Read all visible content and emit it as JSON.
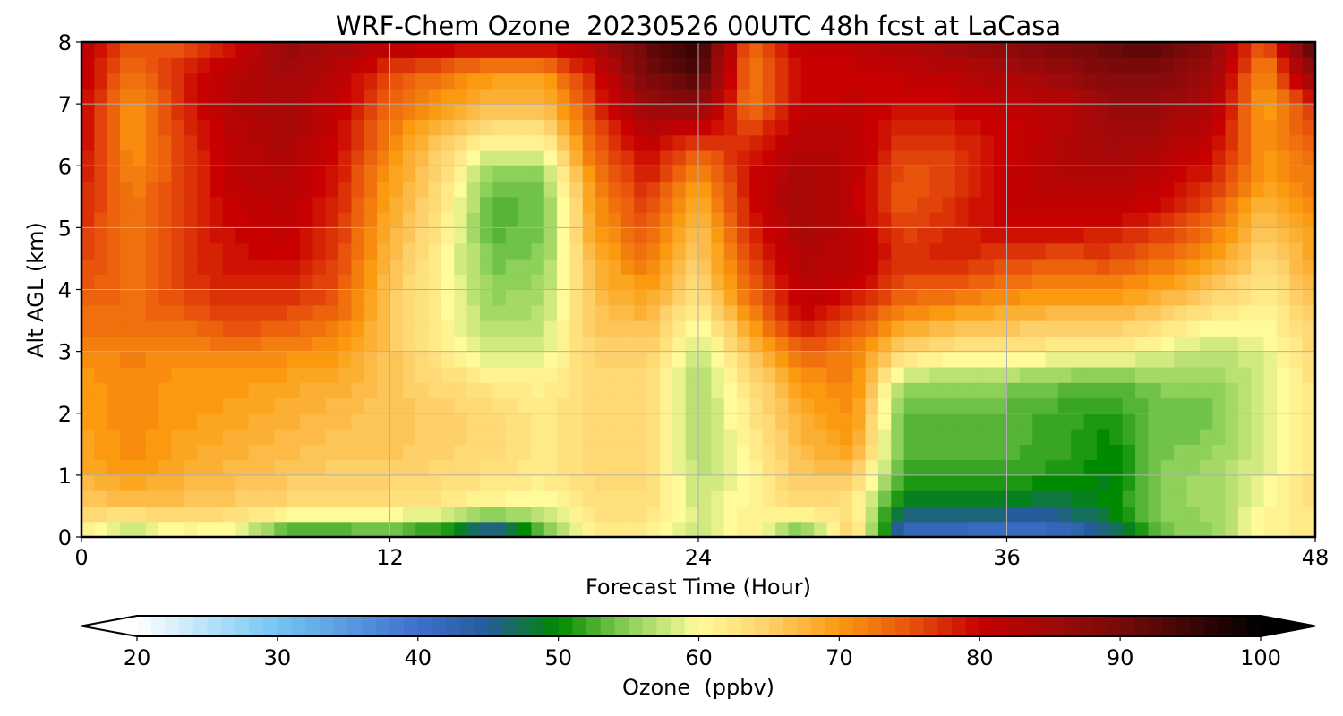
{
  "chart_data": {
    "type": "heatmap",
    "title": "WRF-Chem Ozone  20230526 00UTC 48h fcst at LaCasa",
    "xlabel": "Forecast Time (Hour)",
    "ylabel": "Alt AGL (km)",
    "xlim": [
      0,
      48
    ],
    "ylim": [
      0,
      8
    ],
    "xticks": [
      0,
      12,
      24,
      36,
      48
    ],
    "yticks": [
      0,
      1,
      2,
      3,
      4,
      5,
      6,
      7,
      8
    ],
    "grid": true,
    "x": [
      0,
      2,
      4,
      6,
      8,
      10,
      12,
      14,
      16,
      18,
      20,
      22,
      24,
      26,
      28,
      30,
      32,
      34,
      36,
      38,
      40,
      42,
      44,
      46,
      48
    ],
    "y": [
      0,
      0.5,
      1,
      1.5,
      2,
      2.5,
      3,
      3.5,
      4,
      4.5,
      5,
      5.5,
      6,
      6.5,
      7,
      7.5,
      8
    ],
    "z": [
      [
        60,
        55,
        59,
        58,
        50,
        50,
        51,
        48,
        40,
        52,
        62,
        61,
        58,
        62,
        51,
        66,
        40,
        40,
        38,
        40,
        45,
        54,
        55,
        61,
        62
      ],
      [
        65,
        66,
        66,
        65,
        64,
        63,
        63,
        62,
        60,
        59,
        63,
        63,
        58,
        61,
        64,
        62,
        48,
        48,
        48,
        47,
        50,
        55,
        56,
        60,
        63
      ],
      [
        68,
        70,
        68,
        67,
        66,
        65,
        65,
        64,
        63,
        62,
        64,
        64,
        57,
        60,
        66,
        66,
        52,
        52,
        52,
        51,
        49,
        55,
        56,
        59,
        63
      ],
      [
        69,
        71,
        69,
        68,
        67,
        66,
        66,
        65,
        64,
        62,
        64,
        64,
        56,
        61,
        67,
        70,
        53,
        53,
        53,
        52,
        50,
        54,
        55,
        58,
        63
      ],
      [
        70,
        71,
        70,
        69,
        68,
        67,
        66,
        65,
        64,
        62,
        64,
        64,
        56,
        62,
        68,
        71,
        53,
        53,
        53,
        52,
        51,
        54,
        54,
        58,
        63
      ],
      [
        70,
        71,
        70,
        70,
        69,
        68,
        66,
        64,
        62,
        61,
        64,
        64,
        56,
        63,
        70,
        72,
        56,
        55,
        55,
        54,
        53,
        55,
        55,
        58,
        63
      ],
      [
        71,
        72,
        71,
        72,
        71,
        70,
        66,
        62,
        58,
        59,
        65,
        65,
        57,
        66,
        74,
        72,
        64,
        62,
        62,
        61,
        61,
        59,
        57,
        59,
        64
      ],
      [
        73,
        73,
        74,
        76,
        75,
        73,
        66,
        61,
        56,
        57,
        66,
        67,
        60,
        70,
        80,
        76,
        70,
        68,
        67,
        66,
        66,
        64,
        61,
        60,
        65
      ],
      [
        75,
        73,
        76,
        78,
        78,
        75,
        66,
        61,
        55,
        56,
        67,
        70,
        63,
        74,
        82,
        80,
        75,
        74,
        72,
        71,
        71,
        69,
        66,
        62,
        67
      ],
      [
        76,
        73,
        77,
        79,
        80,
        76,
        67,
        61,
        54,
        55,
        68,
        73,
        65,
        76,
        83,
        82,
        77,
        78,
        76,
        75,
        76,
        73,
        70,
        64,
        69
      ],
      [
        77,
        72,
        77,
        80,
        81,
        77,
        68,
        62,
        53,
        54,
        70,
        75,
        66,
        78,
        84,
        82,
        76,
        78,
        80,
        80,
        79,
        77,
        73,
        66,
        70
      ],
      [
        78,
        72,
        77,
        81,
        82,
        78,
        69,
        63,
        53,
        54,
        71,
        77,
        68,
        79,
        85,
        81,
        74,
        77,
        81,
        82,
        82,
        80,
        76,
        68,
        72
      ],
      [
        79,
        71,
        76,
        82,
        83,
        79,
        70,
        64,
        56,
        56,
        73,
        79,
        72,
        79,
        84,
        82,
        75,
        76,
        80,
        83,
        84,
        82,
        79,
        70,
        73
      ],
      [
        80,
        70,
        77,
        82,
        84,
        80,
        72,
        66,
        62,
        62,
        75,
        82,
        78,
        77,
        82,
        82,
        77,
        78,
        80,
        82,
        85,
        84,
        81,
        70,
        75
      ],
      [
        80,
        70,
        78,
        83,
        84,
        81,
        74,
        70,
        67,
        67,
        77,
        86,
        88,
        72,
        80,
        81,
        79,
        80,
        81,
        82,
        86,
        86,
        83,
        69,
        78
      ],
      [
        81,
        73,
        78,
        82,
        85,
        82,
        76,
        73,
        70,
        70,
        79,
        90,
        94,
        72,
        80,
        80,
        81,
        82,
        84,
        86,
        89,
        89,
        85,
        70,
        88
      ],
      [
        82,
        75,
        74,
        79,
        86,
        85,
        83,
        82,
        82,
        82,
        84,
        92,
        96,
        74,
        81,
        82,
        84,
        86,
        88,
        90,
        92,
        93,
        88,
        74,
        95
      ]
    ],
    "colorbar": {
      "label": "Ozone  (ppbv)",
      "min": 20,
      "max": 100,
      "ticks": [
        20,
        30,
        40,
        50,
        60,
        70,
        80,
        90,
        100
      ],
      "extend": "both",
      "stops": [
        {
          "v": 20,
          "c": "#ffffff"
        },
        {
          "v": 30,
          "c": "#73c5f2"
        },
        {
          "v": 40,
          "c": "#3f6fcc"
        },
        {
          "v": 45,
          "c": "#255c9a"
        },
        {
          "v": 50,
          "c": "#008a00"
        },
        {
          "v": 55,
          "c": "#8dd05a"
        },
        {
          "v": 60,
          "c": "#fffb9a"
        },
        {
          "v": 65,
          "c": "#fed06a"
        },
        {
          "v": 70,
          "c": "#fb9a0f"
        },
        {
          "v": 75,
          "c": "#e8540c"
        },
        {
          "v": 80,
          "c": "#c80000"
        },
        {
          "v": 85,
          "c": "#a00a0a"
        },
        {
          "v": 90,
          "c": "#780a0a"
        },
        {
          "v": 95,
          "c": "#3c0505"
        },
        {
          "v": 100,
          "c": "#000000"
        }
      ]
    }
  }
}
